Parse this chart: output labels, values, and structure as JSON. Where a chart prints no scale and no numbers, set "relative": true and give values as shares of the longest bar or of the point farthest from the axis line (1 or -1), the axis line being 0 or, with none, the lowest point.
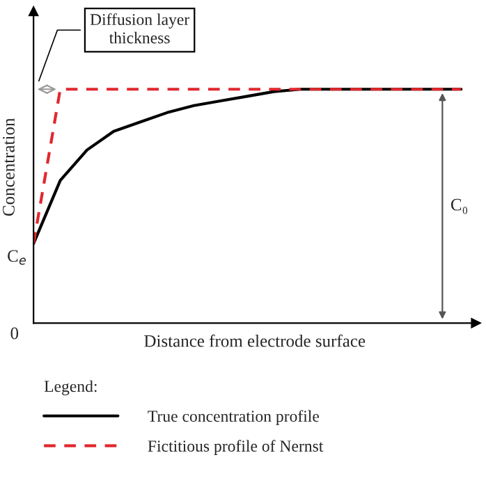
{
  "chart_data": {
    "type": "line",
    "relative": true,
    "xlabel": "Distance from electrode surface",
    "ylabel": "Concentration",
    "legend_title": "Legend:",
    "legend": "bottom",
    "categories": [
      null,
      null,
      null,
      null,
      null,
      null,
      null,
      null,
      null,
      null,
      null,
      null,
      null,
      null,
      null,
      null,
      null
    ],
    "series": [
      {
        "name": "True concentration profile",
        "color": "#000000",
        "line_style": "solid",
        "values": [
          0.34,
          0.61,
          0.74,
          0.82,
          0.86,
          0.9,
          0.93,
          0.95,
          0.97,
          0.99,
          1.0,
          1.0,
          1.0,
          1.0,
          1.0,
          1.0,
          1.0
        ]
      },
      {
        "name": "Fictitious profile of Nernst",
        "color": "#e0282e",
        "line_style": "dashed",
        "values": [
          0.34,
          1.0,
          1.0,
          1.0,
          1.0,
          1.0,
          1.0,
          1.0,
          1.0,
          1.0,
          1.0,
          1.0,
          1.0,
          1.0,
          1.0,
          1.0,
          1.0
        ]
      }
    ],
    "annotations": [
      {
        "text": "Diffusion layer\nthickness",
        "y": 1.0
      },
      "C₀",
      "C$_{e}$",
      "0"
    ]
  }
}
